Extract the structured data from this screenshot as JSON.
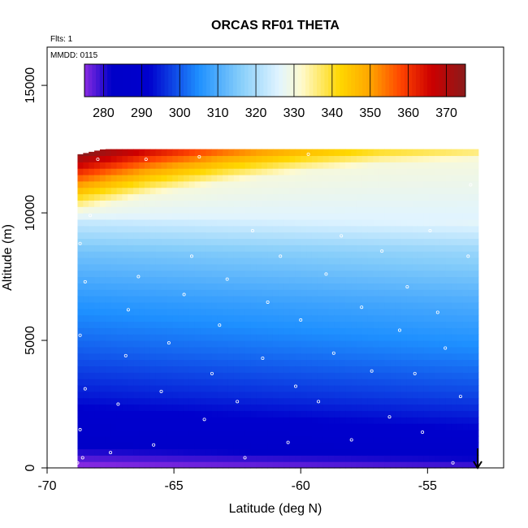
{
  "chart_data": {
    "type": "heatmap",
    "title": "ORCAS RF01 THETA",
    "annotations": {
      "flights": "Flts: 1",
      "date": "MMDD: 0115"
    },
    "xlabel": "Latitude (deg N)",
    "ylabel": "Altitude (m)",
    "xlim": [
      -70,
      -52
    ],
    "ylim": [
      0,
      16500
    ],
    "x_ticks": [
      -70,
      -65,
      -60,
      -55
    ],
    "y_ticks": [
      0,
      5000,
      10000,
      15000
    ],
    "colorbar": {
      "range": [
        275,
        375
      ],
      "ticks": [
        280,
        290,
        300,
        310,
        320,
        330,
        340,
        350,
        360,
        370
      ],
      "stops": [
        {
          "v": 275,
          "c": "#8a2be2"
        },
        {
          "v": 282,
          "c": "#0000c8"
        },
        {
          "v": 292,
          "c": "#0000cd"
        },
        {
          "v": 305,
          "c": "#1e90ff"
        },
        {
          "v": 316,
          "c": "#87cefa"
        },
        {
          "v": 326,
          "c": "#e0f4ff"
        },
        {
          "v": 332,
          "c": "#fffacd"
        },
        {
          "v": 342,
          "c": "#ffd700"
        },
        {
          "v": 350,
          "c": "#ffa500"
        },
        {
          "v": 358,
          "c": "#ff4500"
        },
        {
          "v": 366,
          "c": "#cd0000"
        },
        {
          "v": 375,
          "c": "#8b1a1a"
        }
      ]
    },
    "field": {
      "lat_range": [
        -68.8,
        -53.0
      ],
      "alt_range": [
        0,
        12300
      ],
      "cell_lat": 0.22,
      "cell_alt": 250,
      "columns": [
        {
          "lat": -68.8,
          "tropopause": 10100
        },
        {
          "lat": -66.0,
          "tropopause": 10700
        },
        {
          "lat": -63.0,
          "tropopause": 11200
        },
        {
          "lat": -60.0,
          "tropopause": 11600
        },
        {
          "lat": -57.0,
          "tropopause": 11900
        },
        {
          "lat": -53.0,
          "tropopause": 12100
        }
      ],
      "profile": [
        {
          "alt": 0,
          "theta": 276
        },
        {
          "alt": 600,
          "theta": 282
        },
        {
          "alt": 1500,
          "theta": 290
        },
        {
          "alt": 2800,
          "theta": 296
        },
        {
          "alt": 4500,
          "theta": 302
        },
        {
          "alt": 6500,
          "theta": 308
        },
        {
          "alt": 8500,
          "theta": 316
        },
        {
          "alt": 9800,
          "theta": 326
        }
      ]
    },
    "flight_points": [
      [
        -68.8,
        200
      ],
      [
        -68.6,
        400
      ],
      [
        -68.7,
        1500
      ],
      [
        -68.5,
        3100
      ],
      [
        -68.7,
        5200
      ],
      [
        -68.5,
        7300
      ],
      [
        -68.7,
        8800
      ],
      [
        -68.3,
        9900
      ],
      [
        -68.0,
        12100
      ],
      [
        -67.5,
        600
      ],
      [
        -67.2,
        2500
      ],
      [
        -66.9,
        4400
      ],
      [
        -66.8,
        6200
      ],
      [
        -66.4,
        7500
      ],
      [
        -66.1,
        12100
      ],
      [
        -65.8,
        900
      ],
      [
        -65.5,
        3000
      ],
      [
        -65.2,
        4900
      ],
      [
        -64.6,
        6800
      ],
      [
        -64.3,
        8300
      ],
      [
        -64.0,
        12200
      ],
      [
        -63.8,
        1900
      ],
      [
        -63.5,
        3700
      ],
      [
        -63.2,
        5600
      ],
      [
        -62.9,
        7400
      ],
      [
        -62.5,
        2600
      ],
      [
        -62.2,
        400
      ],
      [
        -61.9,
        9300
      ],
      [
        -61.5,
        4300
      ],
      [
        -61.3,
        6500
      ],
      [
        -60.8,
        8300
      ],
      [
        -60.5,
        1000
      ],
      [
        -60.2,
        3200
      ],
      [
        -60.0,
        5800
      ],
      [
        -59.7,
        12300
      ],
      [
        -59.3,
        2600
      ],
      [
        -59.0,
        7600
      ],
      [
        -58.7,
        4500
      ],
      [
        -58.4,
        9100
      ],
      [
        -58.0,
        1100
      ],
      [
        -57.6,
        6300
      ],
      [
        -57.2,
        3800
      ],
      [
        -56.8,
        8500
      ],
      [
        -56.5,
        2000
      ],
      [
        -56.1,
        5400
      ],
      [
        -55.8,
        7100
      ],
      [
        -55.5,
        3700
      ],
      [
        -55.2,
        1400
      ],
      [
        -54.9,
        9300
      ],
      [
        -54.6,
        6100
      ],
      [
        -54.3,
        4700
      ],
      [
        -54.0,
        200
      ],
      [
        -53.7,
        2800
      ],
      [
        -53.4,
        8300
      ],
      [
        -53.3,
        11100
      ]
    ]
  }
}
